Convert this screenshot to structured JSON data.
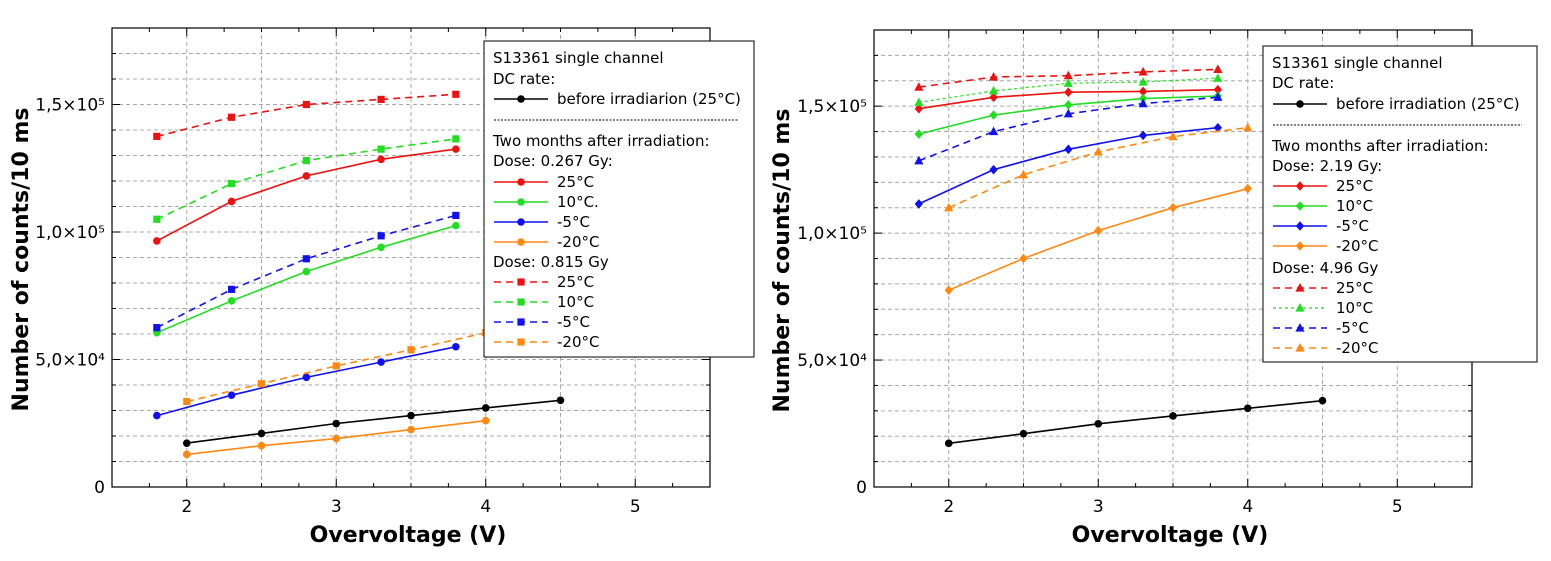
{
  "chart_data": [
    {
      "type": "line",
      "xlabel": "Overvoltage (V)",
      "ylabel": "Number of counts/10 ms",
      "xlim": [
        1.5,
        5.5
      ],
      "ylim": [
        0,
        180000
      ],
      "xticks": [
        2,
        3,
        4,
        5
      ],
      "xtick_labels": [
        "2",
        "3",
        "4",
        "5"
      ],
      "yticks": [
        0,
        50000,
        100000,
        150000
      ],
      "ytick_labels": [
        "0",
        "5,0×10⁴",
        "1,0×10⁵",
        "1,5×10⁵"
      ],
      "grid": true,
      "legend": {
        "placement": "top-right",
        "lines": [
          {
            "kind": "text",
            "text": "S13361 single channel"
          },
          {
            "kind": "text",
            "text": "DC rate:"
          },
          {
            "kind": "entry",
            "series": 0,
            "label": "before irradiarion (25°C)"
          },
          {
            "kind": "divider"
          },
          {
            "kind": "text",
            "text": "Two months after irradiation:"
          },
          {
            "kind": "text",
            "text": "Dose: 0.267 Gy:"
          },
          {
            "kind": "entry",
            "series": 1,
            "label": "25°C"
          },
          {
            "kind": "entry",
            "series": 2,
            "label": "10°C."
          },
          {
            "kind": "entry",
            "series": 3,
            "label": "-5°C"
          },
          {
            "kind": "entry",
            "series": 4,
            "label": "-20°C"
          },
          {
            "kind": "text",
            "text": "Dose: 0.815 Gy"
          },
          {
            "kind": "entry",
            "series": 5,
            "label": "25°C"
          },
          {
            "kind": "entry",
            "series": 6,
            "label": "10°C"
          },
          {
            "kind": "entry",
            "series": 7,
            "label": "-5°C"
          },
          {
            "kind": "entry",
            "series": 8,
            "label": "-20°C"
          }
        ]
      },
      "series": [
        {
          "name": "before irradiarion (25°C)",
          "color": "#000000",
          "dash": "solid",
          "marker": "circle",
          "x": [
            2.0,
            2.5,
            3.0,
            3.5,
            4.0,
            4.5
          ],
          "y": [
            17200,
            21000,
            24900,
            28000,
            31000,
            34000
          ]
        },
        {
          "name": "0.267 Gy 25°C",
          "color": "#ee1111",
          "dash": "solid",
          "marker": "circle",
          "x": [
            1.8,
            2.3,
            2.8,
            3.3,
            3.8
          ],
          "y": [
            96500,
            112000,
            122000,
            128500,
            132500
          ]
        },
        {
          "name": "0.267 Gy 10°C.",
          "color": "#22dd22",
          "dash": "solid",
          "marker": "circle",
          "x": [
            1.8,
            2.3,
            2.8,
            3.3,
            3.8
          ],
          "y": [
            60500,
            73000,
            84500,
            94000,
            102500
          ]
        },
        {
          "name": "0.267 Gy -5°C",
          "color": "#1111ee",
          "dash": "solid",
          "marker": "circle",
          "x": [
            1.8,
            2.3,
            2.8,
            3.3,
            3.8
          ],
          "y": [
            28000,
            36000,
            43000,
            49000,
            55000
          ]
        },
        {
          "name": "0.267 Gy -20°C",
          "color": "#ff8811",
          "dash": "solid",
          "marker": "circle",
          "x": [
            2.0,
            2.5,
            3.0,
            3.5,
            4.0
          ],
          "y": [
            12800,
            16200,
            19000,
            22500,
            26000
          ]
        },
        {
          "name": "0.815 Gy 25°C",
          "color": "#ee1111",
          "dash": "dashed",
          "marker": "square",
          "x": [
            1.8,
            2.3,
            2.8,
            3.3,
            3.8
          ],
          "y": [
            137500,
            145000,
            150000,
            152000,
            154000
          ]
        },
        {
          "name": "0.815 Gy 10°C",
          "color": "#22dd22",
          "dash": "dashed",
          "marker": "square",
          "x": [
            1.8,
            2.3,
            2.8,
            3.3,
            3.8
          ],
          "y": [
            105000,
            119000,
            128000,
            132500,
            136500
          ]
        },
        {
          "name": "0.815 Gy -5°C",
          "color": "#1111ee",
          "dash": "dashed",
          "marker": "square",
          "x": [
            1.8,
            2.3,
            2.8,
            3.3,
            3.8
          ],
          "y": [
            62500,
            77500,
            89500,
            98500,
            106500
          ]
        },
        {
          "name": "0.815 Gy -20°C",
          "color": "#ff8811",
          "dash": "dashed",
          "marker": "square",
          "x": [
            2.0,
            2.5,
            3.0,
            3.5,
            4.0
          ],
          "y": [
            33500,
            40500,
            47500,
            53800,
            60500
          ]
        }
      ]
    },
    {
      "type": "line",
      "xlabel": "Overvoltage (V)",
      "ylabel": "Number of counts/10 ms",
      "xlim": [
        1.5,
        5.5
      ],
      "ylim": [
        0,
        180000
      ],
      "xticks": [
        2,
        3,
        4,
        5
      ],
      "xtick_labels": [
        "2",
        "3",
        "4",
        "5"
      ],
      "yticks": [
        0,
        50000,
        100000,
        150000
      ],
      "ytick_labels": [
        "0",
        "5,0×10⁴",
        "1,0×10⁵",
        "1,5×10⁵"
      ],
      "grid": true,
      "legend": {
        "placement": "top-right",
        "lines": [
          {
            "kind": "text",
            "text": "S13361 single channel"
          },
          {
            "kind": "text",
            "text": "DC rate:"
          },
          {
            "kind": "entry",
            "series": 0,
            "label": "before irradiation (25°C)"
          },
          {
            "kind": "divider"
          },
          {
            "kind": "text",
            "text": "Two months after irradiation:"
          },
          {
            "kind": "text",
            "text": "Dose: 2.19 Gy:"
          },
          {
            "kind": "entry",
            "series": 1,
            "label": "25°C"
          },
          {
            "kind": "entry",
            "series": 2,
            "label": "10°C"
          },
          {
            "kind": "entry",
            "series": 3,
            "label": "-5°C"
          },
          {
            "kind": "entry",
            "series": 4,
            "label": "-20°C"
          },
          {
            "kind": "text",
            "text": "Dose: 4.96 Gy"
          },
          {
            "kind": "entry",
            "series": 5,
            "label": "25°C"
          },
          {
            "kind": "entry",
            "series": 6,
            "label": "10°C"
          },
          {
            "kind": "entry",
            "series": 7,
            "label": "-5°C"
          },
          {
            "kind": "entry",
            "series": 8,
            "label": "-20°C"
          }
        ]
      },
      "series": [
        {
          "name": "before irradiation (25°C)",
          "color": "#000000",
          "dash": "solid",
          "marker": "circle",
          "x": [
            2.0,
            2.5,
            3.0,
            3.5,
            4.0,
            4.5
          ],
          "y": [
            17200,
            21000,
            24900,
            28000,
            31000,
            34000
          ]
        },
        {
          "name": "2.19 Gy 25°C",
          "color": "#ee1111",
          "dash": "solid",
          "marker": "diamond",
          "x": [
            1.8,
            2.3,
            2.8,
            3.3,
            3.8
          ],
          "y": [
            149000,
            153500,
            155500,
            155800,
            156500
          ]
        },
        {
          "name": "2.19 Gy 10°C",
          "color": "#22dd22",
          "dash": "solid",
          "marker": "diamond",
          "x": [
            1.8,
            2.3,
            2.8,
            3.3,
            3.8
          ],
          "y": [
            139000,
            146500,
            150500,
            153000,
            154000
          ]
        },
        {
          "name": "2.19 Gy -5°C",
          "color": "#1111ee",
          "dash": "solid",
          "marker": "diamond",
          "x": [
            1.8,
            2.3,
            2.8,
            3.3,
            3.8
          ],
          "y": [
            111500,
            125000,
            133000,
            138500,
            141500
          ]
        },
        {
          "name": "2.19 Gy -20°C",
          "color": "#ff8811",
          "dash": "solid",
          "marker": "diamond",
          "x": [
            2.0,
            2.5,
            3.0,
            3.5,
            4.0
          ],
          "y": [
            77500,
            90000,
            101000,
            110000,
            117500
          ]
        },
        {
          "name": "4.96 Gy 25°C",
          "color": "#ee1111",
          "dash": "dashed",
          "marker": "triangle",
          "x": [
            1.8,
            2.3,
            2.8,
            3.3,
            3.8
          ],
          "y": [
            157500,
            161500,
            162000,
            163500,
            164500
          ]
        },
        {
          "name": "4.96 Gy 10°C",
          "color": "#22dd22",
          "dash": "dotted",
          "marker": "triangle",
          "x": [
            1.8,
            2.3,
            2.8,
            3.3,
            3.8
          ],
          "y": [
            151500,
            156000,
            159000,
            159500,
            161000
          ]
        },
        {
          "name": "4.96 Gy -5°C",
          "color": "#1111ee",
          "dash": "dashed",
          "marker": "triangle",
          "x": [
            1.8,
            2.3,
            2.8,
            3.3,
            3.8
          ],
          "y": [
            128500,
            140000,
            147000,
            151000,
            153500
          ]
        },
        {
          "name": "4.96 Gy -20°C",
          "color": "#ff8811",
          "dash": "dashed",
          "marker": "triangle",
          "x": [
            2.0,
            2.5,
            3.0,
            3.5,
            4.0
          ],
          "y": [
            110000,
            123000,
            132000,
            138000,
            141500
          ]
        }
      ]
    }
  ]
}
